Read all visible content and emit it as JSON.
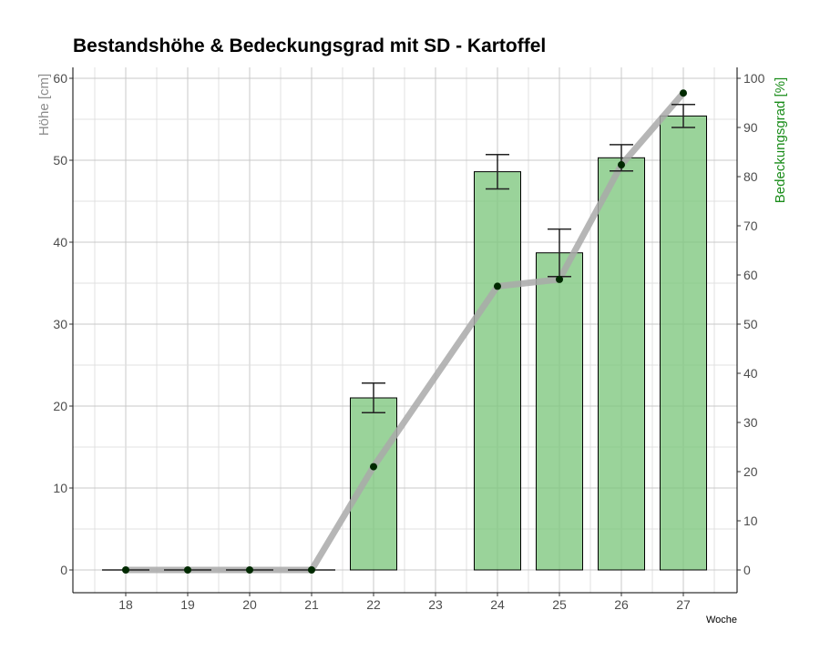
{
  "chart_data": {
    "type": "bar",
    "title": "Bestandshöhe & Bedeckungsgrad mit SD - Kartoffel",
    "xlabel": "Woche",
    "ylabel_left": "Höhe [cm]",
    "ylabel_right": "Bedeckungsgrad [%]",
    "x_categories": [
      "18",
      "19",
      "20",
      "21",
      "22",
      "23",
      "24",
      "25",
      "26",
      "27"
    ],
    "ylim_left": [
      0,
      60
    ],
    "yticks_left": [
      0,
      10,
      20,
      30,
      40,
      50,
      60
    ],
    "ylim_right": [
      0,
      100
    ],
    "yticks_right": [
      0,
      10,
      20,
      30,
      40,
      50,
      60,
      70,
      80,
      90,
      100
    ],
    "grid": true,
    "series": [
      {
        "name": "Höhe [cm]",
        "kind": "bar",
        "axis": "left",
        "color": "#7dc67d",
        "points": [
          {
            "x": "18",
            "value": 0,
            "sd": 0
          },
          {
            "x": "19",
            "value": 0,
            "sd": 0
          },
          {
            "x": "20",
            "value": 0,
            "sd": 0
          },
          {
            "x": "21",
            "value": 0,
            "sd": 0
          },
          {
            "x": "22",
            "value": 21.0,
            "sd": 1.8
          },
          {
            "x": "24",
            "value": 48.6,
            "sd": 2.1
          },
          {
            "x": "25",
            "value": 38.7,
            "sd": 2.9
          },
          {
            "x": "26",
            "value": 50.3,
            "sd": 1.6
          },
          {
            "x": "27",
            "value": 55.4,
            "sd": 1.4
          }
        ]
      },
      {
        "name": "Bedeckungsgrad [%]",
        "kind": "line",
        "axis": "right",
        "color": "#a9a9a9",
        "points": [
          {
            "x": "18",
            "value": 0
          },
          {
            "x": "19",
            "value": 0
          },
          {
            "x": "20",
            "value": 0
          },
          {
            "x": "21",
            "value": 0
          },
          {
            "x": "22",
            "value": 21
          },
          {
            "x": "24",
            "value": 57.7
          },
          {
            "x": "25",
            "value": 59.1
          },
          {
            "x": "26",
            "value": 82.4
          },
          {
            "x": "27",
            "value": 97
          }
        ]
      }
    ]
  }
}
